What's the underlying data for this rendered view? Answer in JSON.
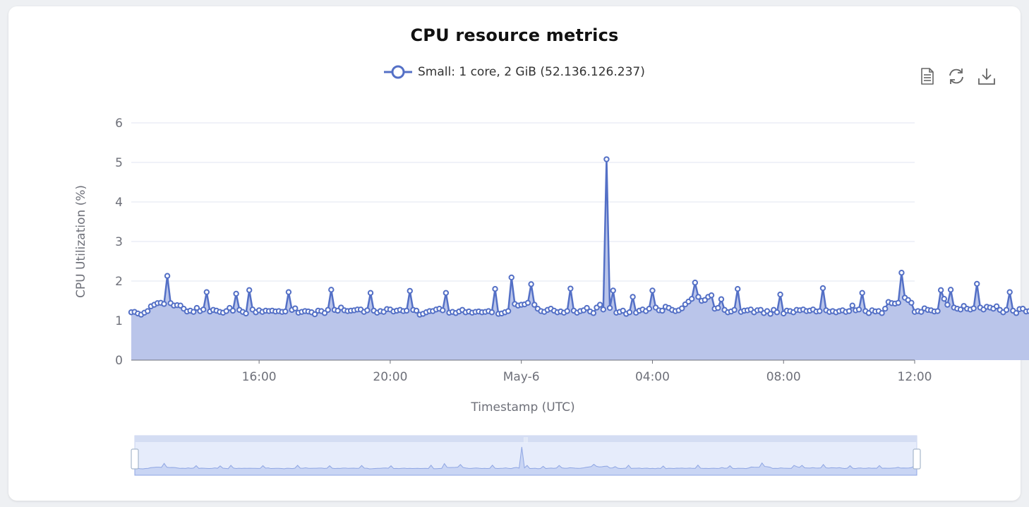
{
  "title": "CPU resource metrics",
  "toolbox": {
    "items": [
      {
        "name": "data-view-icon",
        "label": "Data view"
      },
      {
        "name": "restore-icon",
        "label": "Restore"
      },
      {
        "name": "download-icon",
        "label": "Save as image"
      }
    ]
  },
  "colors": {
    "series": "#5470c6",
    "area": "#bac5ea",
    "grid": "#e0e6f1",
    "axis_text": "#6e7079",
    "zoom_fill": "#e6ecfb",
    "zoom_border": "#c8d3ef"
  },
  "chart_data": {
    "type": "area",
    "title": "CPU resource metrics",
    "xlabel": "Timestamp (UTC)",
    "ylabel": "CPU Utilization (%)",
    "ylim": [
      0,
      6
    ],
    "y_ticks": [
      "0",
      "1",
      "2",
      "3",
      "4",
      "5",
      "6"
    ],
    "x_ticks": [
      "16:00",
      "20:00",
      "May-6",
      "04:00",
      "08:00",
      "12:00"
    ],
    "x_tick_hours": [
      16,
      20,
      24,
      28,
      32,
      36
    ],
    "xlim_hours": [
      12.1,
      36.0
    ],
    "grid": true,
    "legend": "top-center",
    "series": [
      {
        "name": "Small: 1 core, 2 GiB (52.136.126.237)",
        "x_start_hour": 12.1,
        "interval_minutes": 6,
        "values": [
          1.21,
          1.22,
          1.18,
          1.15,
          1.2,
          1.24,
          1.36,
          1.4,
          1.44,
          1.45,
          1.42,
          2.13,
          1.44,
          1.38,
          1.39,
          1.38,
          1.3,
          1.23,
          1.25,
          1.22,
          1.32,
          1.24,
          1.28,
          1.72,
          1.23,
          1.27,
          1.25,
          1.22,
          1.2,
          1.24,
          1.32,
          1.25,
          1.68,
          1.27,
          1.22,
          1.18,
          1.77,
          1.28,
          1.21,
          1.26,
          1.22,
          1.25,
          1.24,
          1.25,
          1.23,
          1.24,
          1.22,
          1.23,
          1.72,
          1.27,
          1.31,
          1.2,
          1.22,
          1.24,
          1.23,
          1.21,
          1.16,
          1.25,
          1.24,
          1.19,
          1.27,
          1.78,
          1.27,
          1.25,
          1.33,
          1.26,
          1.24,
          1.25,
          1.26,
          1.28,
          1.28,
          1.22,
          1.26,
          1.7,
          1.25,
          1.2,
          1.24,
          1.22,
          1.29,
          1.28,
          1.23,
          1.25,
          1.27,
          1.24,
          1.25,
          1.75,
          1.27,
          1.25,
          1.15,
          1.17,
          1.21,
          1.24,
          1.24,
          1.28,
          1.3,
          1.26,
          1.7,
          1.2,
          1.22,
          1.19,
          1.23,
          1.27,
          1.21,
          1.23,
          1.2,
          1.22,
          1.23,
          1.21,
          1.22,
          1.24,
          1.21,
          1.8,
          1.17,
          1.18,
          1.21,
          1.24,
          2.09,
          1.42,
          1.38,
          1.4,
          1.41,
          1.45,
          1.92,
          1.4,
          1.3,
          1.24,
          1.22,
          1.27,
          1.3,
          1.25,
          1.21,
          1.23,
          1.2,
          1.24,
          1.81,
          1.25,
          1.2,
          1.24,
          1.26,
          1.32,
          1.23,
          1.19,
          1.33,
          1.4,
          1.28,
          5.08,
          1.32,
          1.76,
          1.2,
          1.22,
          1.25,
          1.17,
          1.21,
          1.6,
          1.2,
          1.25,
          1.28,
          1.24,
          1.3,
          1.76,
          1.33,
          1.26,
          1.25,
          1.35,
          1.32,
          1.27,
          1.24,
          1.26,
          1.31,
          1.41,
          1.48,
          1.55,
          1.96,
          1.6,
          1.5,
          1.52,
          1.6,
          1.64,
          1.3,
          1.32,
          1.54,
          1.27,
          1.21,
          1.23,
          1.27,
          1.8,
          1.22,
          1.25,
          1.26,
          1.28,
          1.21,
          1.26,
          1.27,
          1.19,
          1.24,
          1.17,
          1.27,
          1.21,
          1.66,
          1.18,
          1.25,
          1.24,
          1.21,
          1.27,
          1.26,
          1.28,
          1.24,
          1.25,
          1.28,
          1.23,
          1.24,
          1.82,
          1.26,
          1.22,
          1.24,
          1.21,
          1.24,
          1.26,
          1.22,
          1.24,
          1.38,
          1.26,
          1.28,
          1.7,
          1.24,
          1.19,
          1.26,
          1.23,
          1.24,
          1.19,
          1.3,
          1.47,
          1.44,
          1.43,
          1.45,
          2.21,
          1.58,
          1.52,
          1.45,
          1.22,
          1.24,
          1.22,
          1.31,
          1.27,
          1.26,
          1.23,
          1.24,
          1.77,
          1.55,
          1.4,
          1.78,
          1.33,
          1.3,
          1.28,
          1.37,
          1.3,
          1.28,
          1.31,
          1.93,
          1.33,
          1.28,
          1.35,
          1.33,
          1.3,
          1.36,
          1.27,
          1.21,
          1.27,
          1.72,
          1.25,
          1.19,
          1.29,
          1.3,
          1.23,
          1.24,
          1.32,
          1.26,
          1.27,
          1.25,
          1.74,
          1.25,
          1.27,
          1.25,
          1.26,
          1.29,
          1.32,
          1.42,
          1.28,
          1.3,
          1.29,
          1.3,
          1.36,
          1.67,
          1.62
        ]
      }
    ]
  }
}
